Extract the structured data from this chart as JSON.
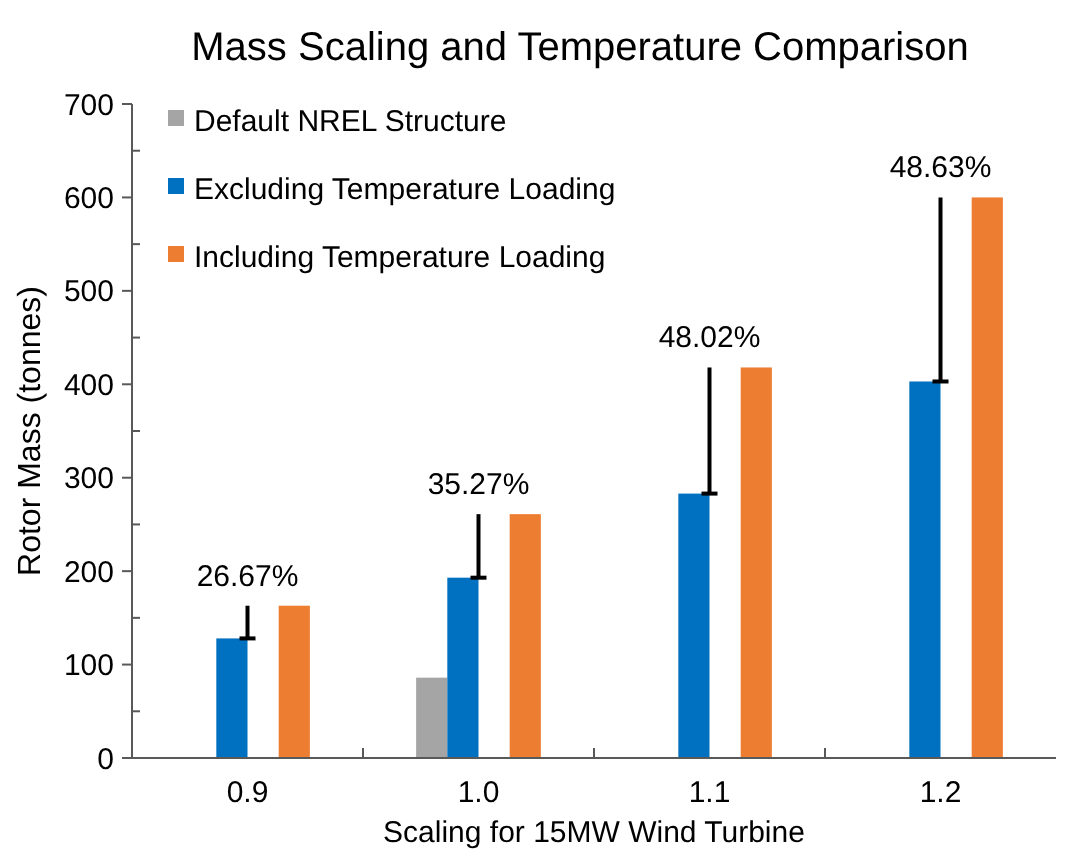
{
  "chart_data": {
    "type": "bar",
    "title": "Mass Scaling and Temperature Comparison",
    "xlabel": "Scaling for 15MW Wind Turbine",
    "ylabel": "Rotor Mass (tonnes)",
    "categories": [
      "0.9",
      "1.0",
      "1.1",
      "1.2"
    ],
    "series": [
      {
        "name": "Default NREL Structure",
        "color": "#a5a5a5",
        "values": [
          null,
          86,
          null,
          null
        ]
      },
      {
        "name": "Excluding Temperature Loading",
        "color": "#0070c0",
        "values": [
          128,
          193,
          283,
          403
        ]
      },
      {
        "name": "Including Temperature Loading",
        "color": "#ed7d31",
        "values": [
          163,
          261,
          418,
          600
        ]
      }
    ],
    "ylim": [
      0,
      700
    ],
    "yticks": [
      0,
      100,
      200,
      300,
      400,
      500,
      600,
      700
    ],
    "grid": false,
    "legend": "top left",
    "annotations": [
      {
        "text": "26.67%",
        "x": "0.9",
        "y": 128
      },
      {
        "text": "35.27%",
        "x": "1.0",
        "y": 193
      },
      {
        "text": "48.02%",
        "x": "1.1",
        "y": 283
      },
      {
        "text": "48.63%",
        "x": "1.2",
        "y": 403
      }
    ]
  }
}
